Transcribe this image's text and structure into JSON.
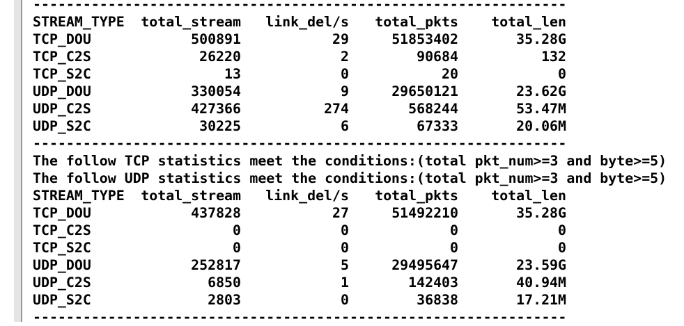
{
  "separators": [
    "----------------------------------------------------------------",
    "----------------------------------------------------------------",
    "----------------------------------------------------------------"
  ],
  "table1": {
    "header": [
      "STREAM_TYPE",
      "total_stream",
      "link_del/s",
      "total_pkts",
      "total_len"
    ],
    "rows": [
      [
        "TCP_DOU",
        "500891",
        "29",
        "51853402",
        "35.28G"
      ],
      [
        "TCP_C2S",
        "26220",
        "2",
        "90684",
        "132"
      ],
      [
        "TCP_S2C",
        "13",
        "0",
        "20",
        "0"
      ],
      [
        "UDP_DOU",
        "330054",
        "9",
        "29650121",
        "23.62G"
      ],
      [
        "UDP_C2S",
        "427366",
        "274",
        "568244",
        "53.47M"
      ],
      [
        "UDP_S2C",
        "30225",
        "6",
        "67333",
        "20.06M"
      ]
    ]
  },
  "conditions": [
    "The follow TCP statistics meet the conditions:(total pkt_num>=3 and byte>=5)",
    "The follow UDP statistics meet the conditions:(total pkt_num>=3 and byte>=5)"
  ],
  "table2": {
    "header": [
      "STREAM_TYPE",
      "total_stream",
      "link_del/s",
      "total_pkts",
      "total_len"
    ],
    "rows": [
      [
        "TCP_DOU",
        "437828",
        "27",
        "51492210",
        "35.28G"
      ],
      [
        "TCP_C2S",
        "0",
        "0",
        "0",
        "0"
      ],
      [
        "TCP_S2C",
        "0",
        "0",
        "0",
        "0"
      ],
      [
        "UDP_DOU",
        "252817",
        "5",
        "29495647",
        "23.59G"
      ],
      [
        "UDP_C2S",
        "6850",
        "1",
        "142403",
        "40.94M"
      ],
      [
        "UDP_S2C",
        "2803",
        "0",
        "36838",
        "17.21M"
      ]
    ]
  }
}
